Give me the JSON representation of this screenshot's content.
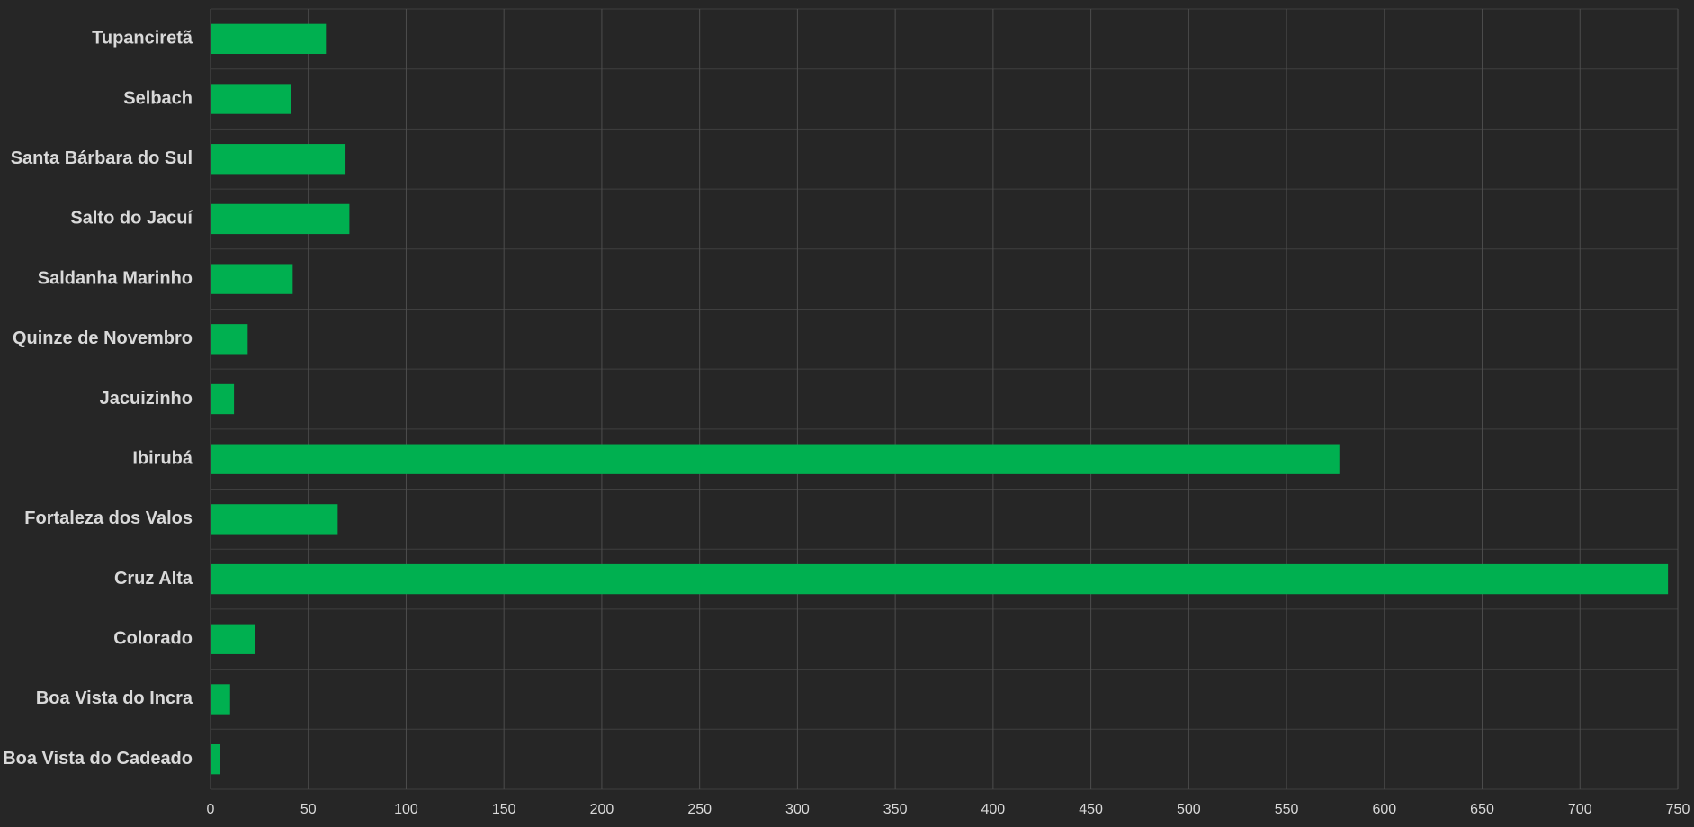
{
  "chart_data": {
    "type": "bar",
    "orientation": "horizontal",
    "categories": [
      "Tupanciretã",
      "Selbach",
      "Santa Bárbara do Sul",
      "Salto do Jacuí",
      "Saldanha Marinho",
      "Quinze de Novembro",
      "Jacuizinho",
      "Ibirubá",
      "Fortaleza dos Valos",
      "Cruz Alta",
      "Colorado",
      "Boa Vista do Incra",
      "Boa Vista do Cadeado"
    ],
    "values": [
      59,
      41,
      69,
      71,
      42,
      19,
      12,
      577,
      65,
      745,
      23,
      10,
      5
    ],
    "color": "#00b050",
    "xlim": [
      0,
      750
    ],
    "xticks": [
      0,
      50,
      100,
      150,
      200,
      250,
      300,
      350,
      400,
      450,
      500,
      550,
      600,
      650,
      700,
      750
    ],
    "grid": true
  }
}
